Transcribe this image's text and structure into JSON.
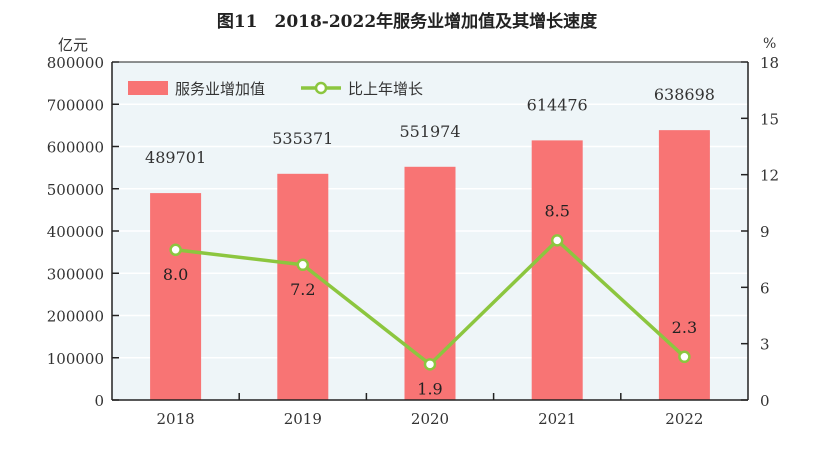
{
  "chart_data": {
    "type": "bar+line",
    "title": "图11　2018-2022年服务业增加值及其增长速度",
    "ylabel_left": "亿元",
    "ylabel_right": "%",
    "categories": [
      "2018",
      "2019",
      "2020",
      "2021",
      "2022"
    ],
    "series": [
      {
        "name": "服务业增加值",
        "type": "bar",
        "axis": "left",
        "values": [
          489701,
          535371,
          551974,
          614476,
          638698
        ],
        "color": "#f87474"
      },
      {
        "name": "比上年增长",
        "type": "line",
        "axis": "right",
        "values": [
          8.0,
          7.2,
          1.9,
          8.5,
          2.3
        ],
        "labels": [
          "8.0",
          "7.2",
          "1.9",
          "8.5",
          "2.3"
        ],
        "color": "#8cc63f"
      }
    ],
    "ylim_left": [
      0,
      800000
    ],
    "yticks_left": [
      "0",
      "100000",
      "200000",
      "300000",
      "400000",
      "500000",
      "600000",
      "700000",
      "800000"
    ],
    "ylim_right": [
      0,
      18
    ],
    "yticks_right": [
      "0",
      "3",
      "6",
      "9",
      "12",
      "15",
      "18"
    ],
    "grid": true,
    "legend": "top-left",
    "plot_background": "#eef5f8"
  }
}
